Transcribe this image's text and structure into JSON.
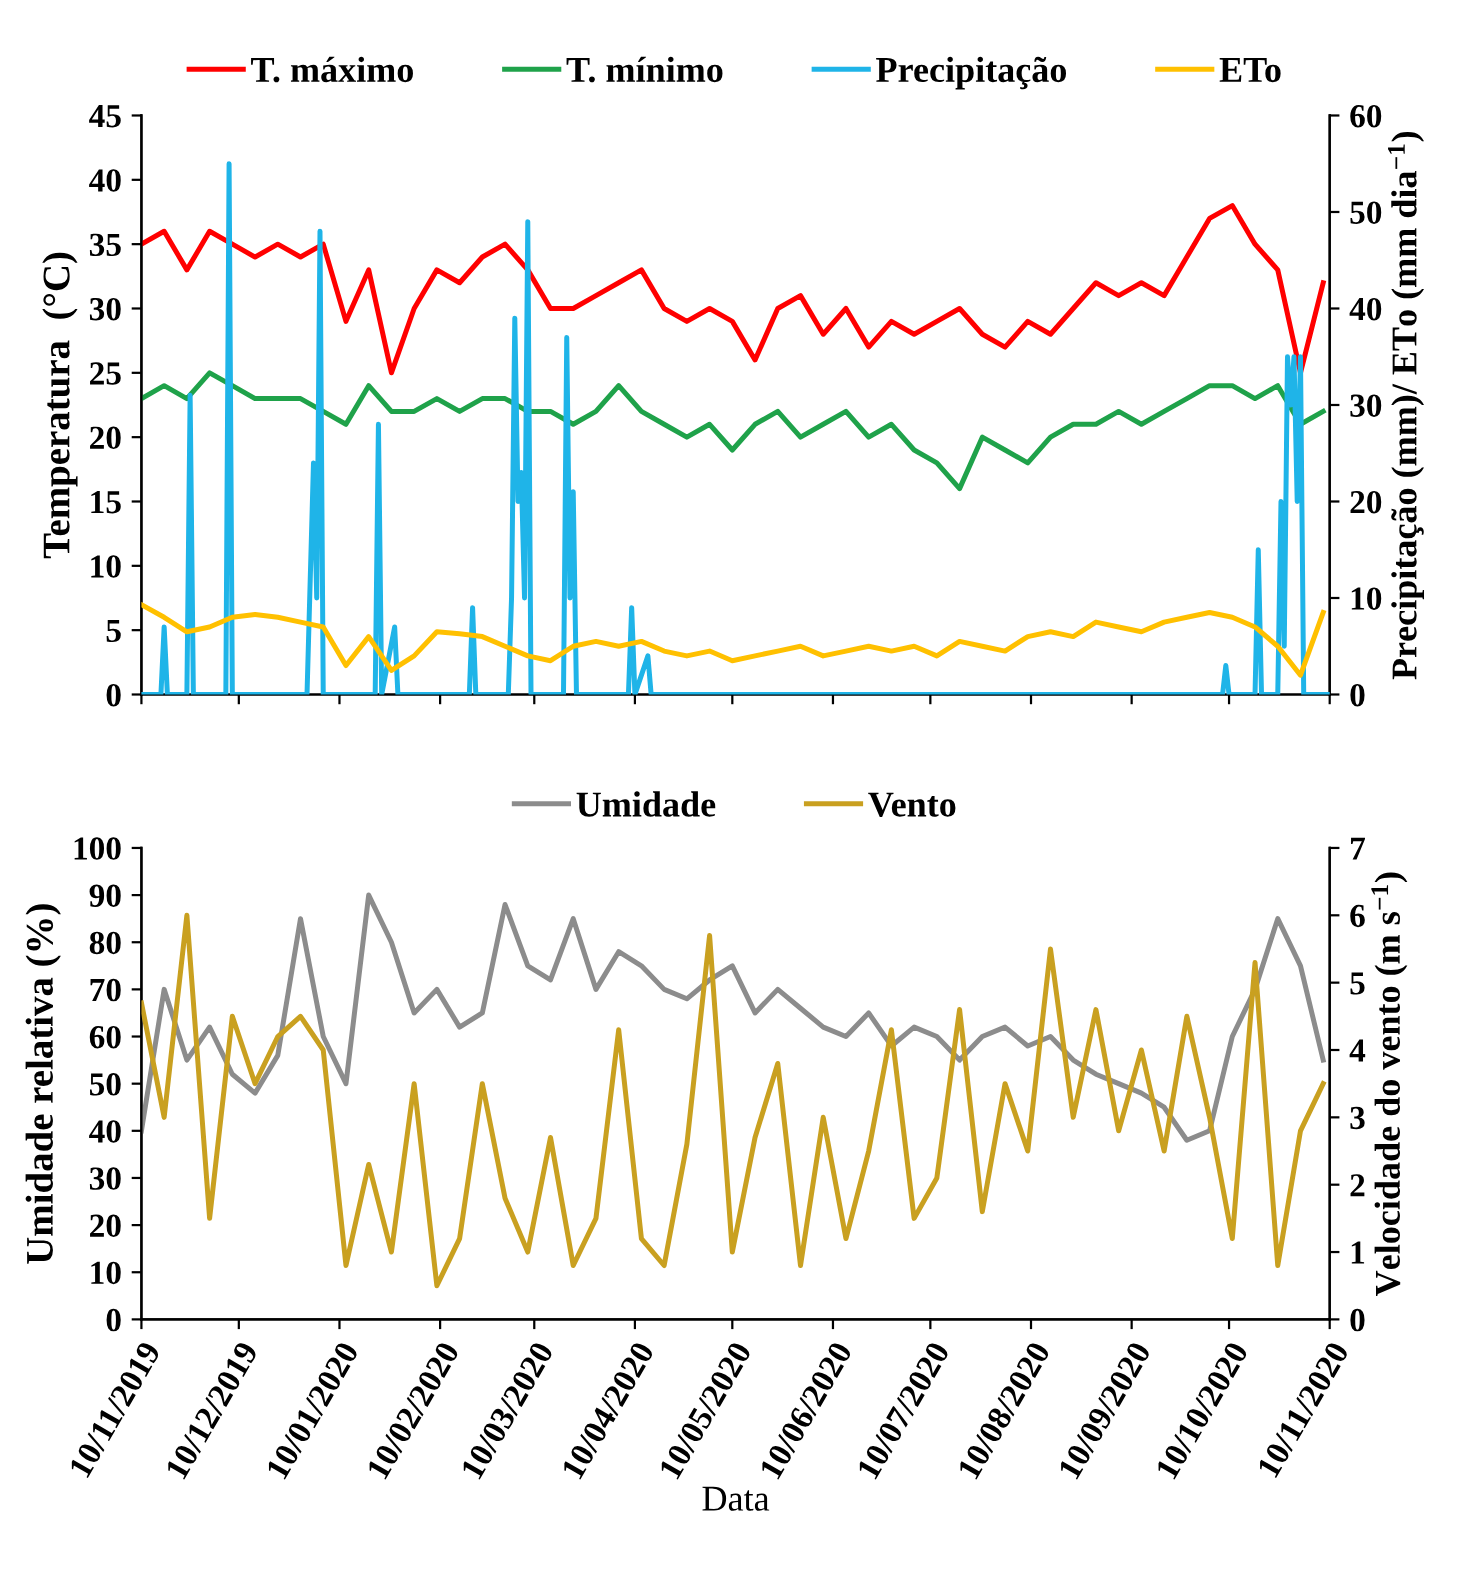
{
  "chart_data": [
    {
      "type": "line",
      "ylabel": "Temperatura  (°C)",
      "y2label": "Precipitação (mm)/ ETo (mm dia$^{−1}$)",
      "legend": "top",
      "grid": false,
      "tick_labels": "y",
      "x": [
        "2019-11-10",
        "2019-11-17",
        "2019-11-24",
        "2019-12-01",
        "2019-12-08",
        "2019-12-15",
        "2019-12-22",
        "2019-12-29",
        "2020-01-05",
        "2020-01-12",
        "2020-01-19",
        "2020-01-26",
        "2020-02-02",
        "2020-02-09",
        "2020-02-16",
        "2020-02-23",
        "2020-03-01",
        "2020-03-08",
        "2020-03-15",
        "2020-03-22",
        "2020-03-29",
        "2020-04-05",
        "2020-04-12",
        "2020-04-19",
        "2020-04-26",
        "2020-05-03",
        "2020-05-10",
        "2020-05-17",
        "2020-05-24",
        "2020-05-31",
        "2020-06-07",
        "2020-06-14",
        "2020-06-21",
        "2020-06-28",
        "2020-07-05",
        "2020-07-12",
        "2020-07-19",
        "2020-07-26",
        "2020-08-02",
        "2020-08-09",
        "2020-08-16",
        "2020-08-23",
        "2020-08-30",
        "2020-09-06",
        "2020-09-13",
        "2020-09-20",
        "2020-09-27",
        "2020-10-04",
        "2020-10-11",
        "2020-10-18",
        "2020-10-25",
        "2020-11-01",
        "2020-11-08"
      ],
      "xlim": [
        "2019-11-10",
        "2020-11-10"
      ],
      "xticks": [
        {
          "value": "2019-11-10",
          "label": null
        },
        {
          "value": "2019-12-10",
          "label": null
        },
        {
          "value": "2020-01-10",
          "label": null
        },
        {
          "value": "2020-02-10",
          "label": null
        },
        {
          "value": "2020-03-10",
          "label": null
        },
        {
          "value": "2020-04-10",
          "label": null
        },
        {
          "value": "2020-05-10",
          "label": null
        },
        {
          "value": "2020-06-10",
          "label": null
        },
        {
          "value": "2020-07-10",
          "label": null
        },
        {
          "value": "2020-08-10",
          "label": null
        },
        {
          "value": "2020-09-10",
          "label": null
        },
        {
          "value": "2020-10-10",
          "label": null
        },
        {
          "value": "2020-11-10",
          "label": null
        }
      ],
      "ylim": [
        0,
        45
      ],
      "yticks": [
        0,
        5,
        10,
        15,
        20,
        25,
        30,
        35,
        40,
        45
      ],
      "y2lim": [
        0,
        60
      ],
      "y2ticks": [
        0,
        10,
        20,
        30,
        40,
        50,
        60
      ],
      "series": [
        {
          "name": "T. máximo",
          "color": "#ff0000",
          "values": [
            35,
            36,
            33,
            36,
            35,
            34,
            35,
            34,
            35,
            29,
            33,
            25,
            30,
            33,
            32,
            34,
            35,
            33,
            30,
            30,
            31,
            32,
            33,
            30,
            29,
            30,
            29,
            26,
            30,
            31,
            28,
            30,
            27,
            29,
            28,
            29,
            30,
            28,
            27,
            29,
            28,
            30,
            32,
            31,
            32,
            31,
            34,
            37,
            38,
            35,
            33,
            25,
            32
          ]
        },
        {
          "name": "T. mínimo",
          "color": "#1fa24a",
          "values": [
            23,
            24,
            23,
            25,
            24,
            23,
            23,
            23,
            22,
            21,
            24,
            22,
            22,
            23,
            22,
            23,
            23,
            22,
            22,
            21,
            22,
            24,
            22,
            21,
            20,
            21,
            19,
            21,
            22,
            20,
            21,
            22,
            20,
            21,
            19,
            18,
            16,
            20,
            19,
            18,
            20,
            21,
            21,
            22,
            21,
            22,
            23,
            24,
            24,
            23,
            24,
            21,
            22
          ]
        },
        {
          "name": "Precipitação",
          "color": "#1fb4e8",
          "axis": "y2",
          "x": [
            "2019-11-10",
            "2019-11-16",
            "2019-11-17",
            "2019-11-18",
            "2019-11-24",
            "2019-11-25",
            "2019-11-26",
            "2019-12-06",
            "2019-12-07",
            "2019-12-08",
            "2019-12-31",
            "2020-01-01",
            "2020-01-02",
            "2020-01-03",
            "2020-01-04",
            "2020-01-05",
            "2020-01-21",
            "2020-01-22",
            "2020-01-23",
            "2020-01-27",
            "2020-01-28",
            "2020-02-19",
            "2020-02-20",
            "2020-02-21",
            "2020-03-02",
            "2020-03-03",
            "2020-03-04",
            "2020-03-05",
            "2020-03-06",
            "2020-03-07",
            "2020-03-08",
            "2020-03-09",
            "2020-03-19",
            "2020-03-20",
            "2020-03-21",
            "2020-03-22",
            "2020-03-23",
            "2020-04-08",
            "2020-04-09",
            "2020-04-10",
            "2020-04-14",
            "2020-04-15",
            "2020-10-08",
            "2020-10-09",
            "2020-10-10",
            "2020-10-18",
            "2020-10-19",
            "2020-10-20",
            "2020-10-25",
            "2020-10-26",
            "2020-10-27",
            "2020-10-28",
            "2020-10-29",
            "2020-10-30",
            "2020-10-31",
            "2020-11-01",
            "2020-11-02",
            "2020-11-10"
          ],
          "values": [
            0,
            0,
            7,
            0,
            0,
            31,
            0,
            0,
            55,
            0,
            0,
            12,
            24,
            10,
            48,
            0,
            0,
            28,
            0,
            7,
            0,
            0,
            9,
            0,
            0,
            10,
            39,
            20,
            23,
            10,
            49,
            0,
            0,
            37,
            10,
            21,
            0,
            0,
            9,
            0,
            4,
            0,
            0,
            3,
            0,
            0,
            15,
            0,
            0,
            20,
            5,
            35,
            30,
            35,
            20,
            35,
            0,
            0
          ]
        },
        {
          "name": "ETo",
          "color": "#ffc000",
          "axis": "y2",
          "values": [
            9.3,
            8.0,
            6.5,
            7.0,
            8.0,
            8.3,
            8.0,
            7.5,
            7.0,
            3.0,
            6.0,
            2.5,
            4.0,
            6.5,
            6.3,
            6.0,
            5.0,
            4.0,
            3.5,
            5.0,
            5.5,
            5.0,
            5.5,
            4.5,
            4.0,
            4.5,
            3.5,
            4.0,
            4.5,
            5.0,
            4.0,
            4.5,
            5.0,
            4.5,
            5.0,
            4.0,
            5.5,
            5.0,
            4.5,
            6.0,
            6.5,
            6.0,
            7.5,
            7.0,
            6.5,
            7.5,
            8.0,
            8.5,
            8.0,
            7.0,
            5.0,
            2.0,
            8.5
          ]
        }
      ]
    },
    {
      "type": "line",
      "xlabel": "Data",
      "ylabel": "Umidade relativa (%)",
      "y2label": "Velocidade do vento (m s$^{−1}$)",
      "legend": "top",
      "grid": false,
      "x": [
        "2019-11-10",
        "2019-11-17",
        "2019-11-24",
        "2019-12-01",
        "2019-12-08",
        "2019-12-15",
        "2019-12-22",
        "2019-12-29",
        "2020-01-05",
        "2020-01-12",
        "2020-01-19",
        "2020-01-26",
        "2020-02-02",
        "2020-02-09",
        "2020-02-16",
        "2020-02-23",
        "2020-03-01",
        "2020-03-08",
        "2020-03-15",
        "2020-03-22",
        "2020-03-29",
        "2020-04-05",
        "2020-04-12",
        "2020-04-19",
        "2020-04-26",
        "2020-05-03",
        "2020-05-10",
        "2020-05-17",
        "2020-05-24",
        "2020-05-31",
        "2020-06-07",
        "2020-06-14",
        "2020-06-21",
        "2020-06-28",
        "2020-07-05",
        "2020-07-12",
        "2020-07-19",
        "2020-07-26",
        "2020-08-02",
        "2020-08-09",
        "2020-08-16",
        "2020-08-23",
        "2020-08-30",
        "2020-09-06",
        "2020-09-13",
        "2020-09-20",
        "2020-09-27",
        "2020-10-04",
        "2020-10-11",
        "2020-10-18",
        "2020-10-25",
        "2020-11-01",
        "2020-11-08"
      ],
      "xlim": [
        "2019-11-10",
        "2020-11-10"
      ],
      "xticks": [
        {
          "value": "2019-11-10",
          "label": "10/11/2019"
        },
        {
          "value": "2019-12-10",
          "label": "10/12/2019"
        },
        {
          "value": "2020-01-10",
          "label": "10/01/2020"
        },
        {
          "value": "2020-02-10",
          "label": "10/02/2020"
        },
        {
          "value": "2020-03-10",
          "label": "10/03/2020"
        },
        {
          "value": "2020-04-10",
          "label": "10/04/2020"
        },
        {
          "value": "2020-05-10",
          "label": "10/05/2020"
        },
        {
          "value": "2020-06-10",
          "label": "10/06/2020"
        },
        {
          "value": "2020-07-10",
          "label": "10/07/2020"
        },
        {
          "value": "2020-08-10",
          "label": "10/08/2020"
        },
        {
          "value": "2020-09-10",
          "label": "10/09/2020"
        },
        {
          "value": "2020-10-10",
          "label": "10/10/2020"
        },
        {
          "value": "2020-11-10",
          "label": "10/11/2020"
        }
      ],
      "ylim": [
        0,
        100
      ],
      "yticks": [
        0,
        10,
        20,
        30,
        40,
        50,
        60,
        70,
        80,
        90,
        100
      ],
      "y2lim": [
        0,
        7
      ],
      "y2ticks": [
        0,
        1,
        2,
        3,
        4,
        5,
        6,
        7
      ],
      "series": [
        {
          "name": "Umidade",
          "color": "#8c8c8c",
          "values": [
            40,
            70,
            55,
            62,
            52,
            48,
            56,
            85,
            60,
            50,
            90,
            80,
            65,
            70,
            62,
            65,
            88,
            75,
            72,
            85,
            70,
            78,
            75,
            70,
            68,
            72,
            75,
            65,
            70,
            66,
            62,
            60,
            65,
            58,
            62,
            60,
            55,
            60,
            62,
            58,
            60,
            55,
            52,
            50,
            48,
            45,
            38,
            40,
            60,
            70,
            85,
            75,
            55
          ]
        },
        {
          "name": "Vento",
          "color": "#c9a020",
          "axis": "y2",
          "values": [
            4.7,
            3.0,
            6.0,
            1.5,
            4.5,
            3.5,
            4.2,
            4.5,
            4.0,
            0.8,
            2.3,
            1.0,
            3.5,
            0.5,
            1.2,
            3.5,
            1.8,
            1.0,
            2.7,
            0.8,
            1.5,
            4.3,
            1.2,
            0.8,
            2.6,
            5.7,
            1.0,
            2.7,
            3.8,
            0.8,
            3.0,
            1.2,
            2.5,
            4.3,
            1.5,
            2.1,
            4.6,
            1.6,
            3.5,
            2.5,
            5.5,
            3.0,
            4.6,
            2.8,
            4.0,
            2.5,
            4.5,
            3.0,
            1.2,
            5.3,
            0.8,
            2.8,
            3.5
          ]
        }
      ]
    }
  ]
}
